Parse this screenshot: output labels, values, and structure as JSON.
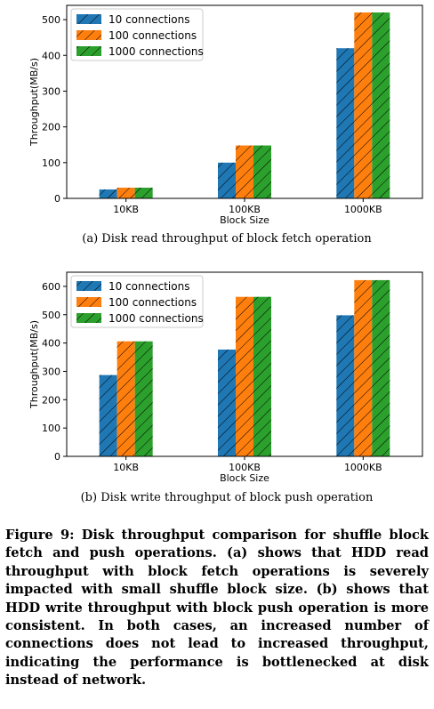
{
  "chart_data": [
    {
      "type": "bar",
      "caption": "(a) Disk read throughput of block fetch operation",
      "categories": [
        "10KB",
        "100KB",
        "1000KB"
      ],
      "xlabel": "Block Size",
      "ylabel": "Throughput(MB/s)",
      "ylim": [
        0,
        540
      ],
      "yticks": [
        0,
        100,
        200,
        300,
        400,
        500
      ],
      "grid": false,
      "legend_position": "top-left",
      "series": [
        {
          "name": "10 connections",
          "color": "#1f77b4",
          "hatch": "diagonal",
          "values": [
            25,
            100,
            420
          ]
        },
        {
          "name": "100 connections",
          "color": "#ff7f0e",
          "hatch": "diagonal",
          "values": [
            30,
            148,
            520
          ]
        },
        {
          "name": "1000 connections",
          "color": "#2ca02c",
          "hatch": "diagonal",
          "values": [
            30,
            148,
            520
          ]
        }
      ]
    },
    {
      "type": "bar",
      "caption": "(b) Disk write throughput of block push operation",
      "categories": [
        "10KB",
        "100KB",
        "1000KB"
      ],
      "xlabel": "Block Size",
      "ylabel": "Throughput(MB/s)",
      "ylim": [
        0,
        650
      ],
      "yticks": [
        0,
        100,
        200,
        300,
        400,
        500,
        600
      ],
      "grid": false,
      "legend_position": "top-left",
      "series": [
        {
          "name": "10 connections",
          "color": "#1f77b4",
          "hatch": "diagonal",
          "values": [
            287,
            377,
            498
          ]
        },
        {
          "name": "100 connections",
          "color": "#ff7f0e",
          "hatch": "diagonal",
          "values": [
            406,
            563,
            622
          ]
        },
        {
          "name": "1000 connections",
          "color": "#2ca02c",
          "hatch": "diagonal",
          "values": [
            406,
            563,
            622
          ]
        }
      ]
    }
  ],
  "figure_caption": "Figure 9: Disk throughput comparison for shuffle block fetch and push operations. (a) shows that HDD read throughput with block fetch operations is severely impacted with small shuffle block size. (b) shows that HDD write throughput with block push operation is more consistent. In both cases, an increased number of connections does not lead to increased throughput, indicating the performance is bottlenecked at disk instead of network."
}
